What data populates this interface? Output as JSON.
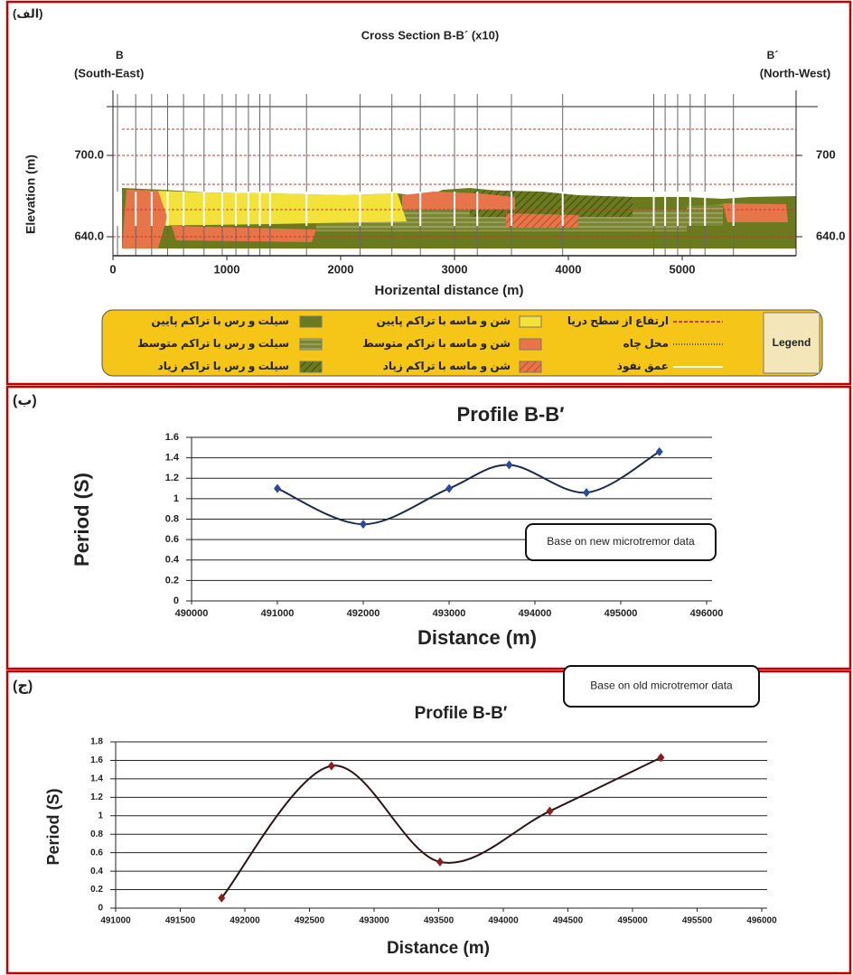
{
  "chart_data": [
    {
      "type": "section",
      "panel_label": "(الف)",
      "title": "Cross Section  B-B´ (x10)",
      "left_end": {
        "name": "B",
        "direction": "(South-East)"
      },
      "right_end": {
        "name": "B´",
        "direction": "(North-West)"
      },
      "x_label": "Horizental distance (m)",
      "y_label": "Elevation (m)",
      "xlim": [
        0,
        6000
      ],
      "xticks": [
        0,
        1000,
        2000,
        3000,
        4000,
        5000
      ],
      "ylim": [
        626,
        748
      ],
      "yticks": [
        {
          "value": 640,
          "label": "640.0"
        },
        {
          "value": 700,
          "label": "700.0"
        }
      ],
      "y2lim": [
        626,
        748
      ],
      "y2ticks": [
        {
          "value": 640,
          "label": "640.0"
        },
        {
          "value": 700,
          "label": "700"
        }
      ],
      "wells": [
        40,
        200,
        340,
        480,
        620,
        800,
        960,
        1080,
        1190,
        1290,
        1380,
        1700,
        2170,
        2450,
        2700,
        3000,
        3200,
        3500,
        3950,
        4750,
        4850,
        4960,
        5070,
        5200,
        5450
      ],
      "legend_title": "Legend",
      "legend": [
        {
          "name": "سیلت و رس با تراکم پایین",
          "color": "#6b7a1e",
          "style": "fill"
        },
        {
          "name": "سیلت و رس با تراکم متوسط",
          "color": "#6b7a1e",
          "style": "stripe"
        },
        {
          "name": "سیلت و رس با تراکم زیاد",
          "color": "#6b7a1e",
          "style": "hatch"
        },
        {
          "name": "شن و ماسه با تراکم پایین",
          "color": "#f2e23a",
          "style": "fill"
        },
        {
          "name": "شن و ماسه با تراکم متوسط",
          "color": "#e8744a",
          "style": "fill"
        },
        {
          "name": "شن و ماسه با تراکم زیاد",
          "color": "#e8744a",
          "style": "hatch"
        },
        {
          "name": "ارتفاع از سطح دریا",
          "color": "#c83a2a",
          "style": "dashed"
        },
        {
          "name": "محل چاه",
          "color": "#555555",
          "style": "dotted"
        },
        {
          "name": "عمق نفوذ",
          "color": "#ffffff",
          "style": "solid"
        }
      ]
    },
    {
      "type": "line",
      "panel_label": "(ب)",
      "title": "Profile B-B′",
      "x_label": "Distance (m)",
      "y_label": "Period (S)",
      "annotation": "Base on new microtremor data",
      "xlim": [
        490000,
        496000
      ],
      "xticks": [
        490000,
        491000,
        492000,
        493000,
        494000,
        495000,
        496000
      ],
      "ylim": [
        0,
        1.6
      ],
      "yticks": [
        0,
        0.2,
        0.4,
        0.6,
        0.8,
        1,
        1.2,
        1.4,
        1.6
      ],
      "grid": true,
      "x": [
        491000,
        492000,
        493000,
        493700,
        494600,
        495450
      ],
      "values": [
        1.1,
        0.75,
        1.1,
        1.33,
        1.06,
        1.46
      ],
      "color": "#1c2a4a",
      "marker_color": "#2a4a9a"
    },
    {
      "type": "line",
      "panel_label": "(ج)",
      "title": "Profile B-B′",
      "x_label": "Distance (m)",
      "y_label": "Period (S)",
      "annotation": "Base on old microtremor data",
      "xlim": [
        491000,
        496000
      ],
      "xticks": [
        491000,
        491500,
        492000,
        492500,
        493000,
        493500,
        494000,
        494500,
        495000,
        495500,
        496000
      ],
      "ylim": [
        0,
        1.8
      ],
      "yticks": [
        0,
        0.2,
        0.4,
        0.6,
        0.8,
        1,
        1.2,
        1.4,
        1.6,
        1.8
      ],
      "grid": true,
      "x": [
        491820,
        492670,
        493510,
        494360,
        495220
      ],
      "values": [
        0.11,
        1.54,
        0.5,
        1.05,
        1.63
      ],
      "color": "#2a1416",
      "marker_color": "#8a1e1e"
    }
  ]
}
